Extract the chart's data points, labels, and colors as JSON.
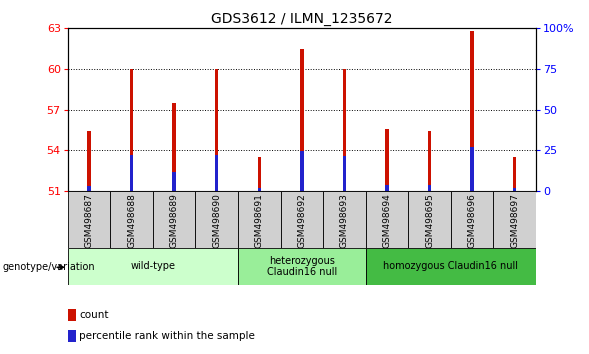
{
  "title": "GDS3612 / ILMN_1235672",
  "samples": [
    "GSM498687",
    "GSM498688",
    "GSM498689",
    "GSM498690",
    "GSM498691",
    "GSM498692",
    "GSM498693",
    "GSM498694",
    "GSM498695",
    "GSM498696",
    "GSM498697"
  ],
  "red_values": [
    55.4,
    60.0,
    57.5,
    60.0,
    53.5,
    61.5,
    60.0,
    55.6,
    55.4,
    62.8,
    53.5
  ],
  "blue_values": [
    51.35,
    53.7,
    52.4,
    53.7,
    51.25,
    53.95,
    53.6,
    51.45,
    51.45,
    54.25,
    51.2
  ],
  "y_min": 51,
  "y_max": 63,
  "y_ticks_left": [
    51,
    54,
    57,
    60,
    63
  ],
  "y_ticks_right": [
    0,
    25,
    50,
    75,
    100
  ],
  "bar_width": 0.08,
  "red_color": "#CC1100",
  "blue_color": "#2222CC",
  "bar_base": 51,
  "groups": [
    {
      "label": "wild-type",
      "start": 0,
      "end": 3,
      "color": "#ccffcc"
    },
    {
      "label": "heterozygous\nClaudin16 null",
      "start": 4,
      "end": 6,
      "color": "#99ee99"
    },
    {
      "label": "homozygous Claudin16 null",
      "start": 7,
      "end": 10,
      "color": "#44bb44"
    }
  ],
  "group_bg": "#d0d0d0",
  "plot_bg": "#ffffff",
  "genotype_label": "genotype/variation",
  "legend_count": "count",
  "legend_percentile": "percentile rank within the sample",
  "title_fontsize": 10,
  "tick_fontsize": 8,
  "label_fontsize": 7
}
